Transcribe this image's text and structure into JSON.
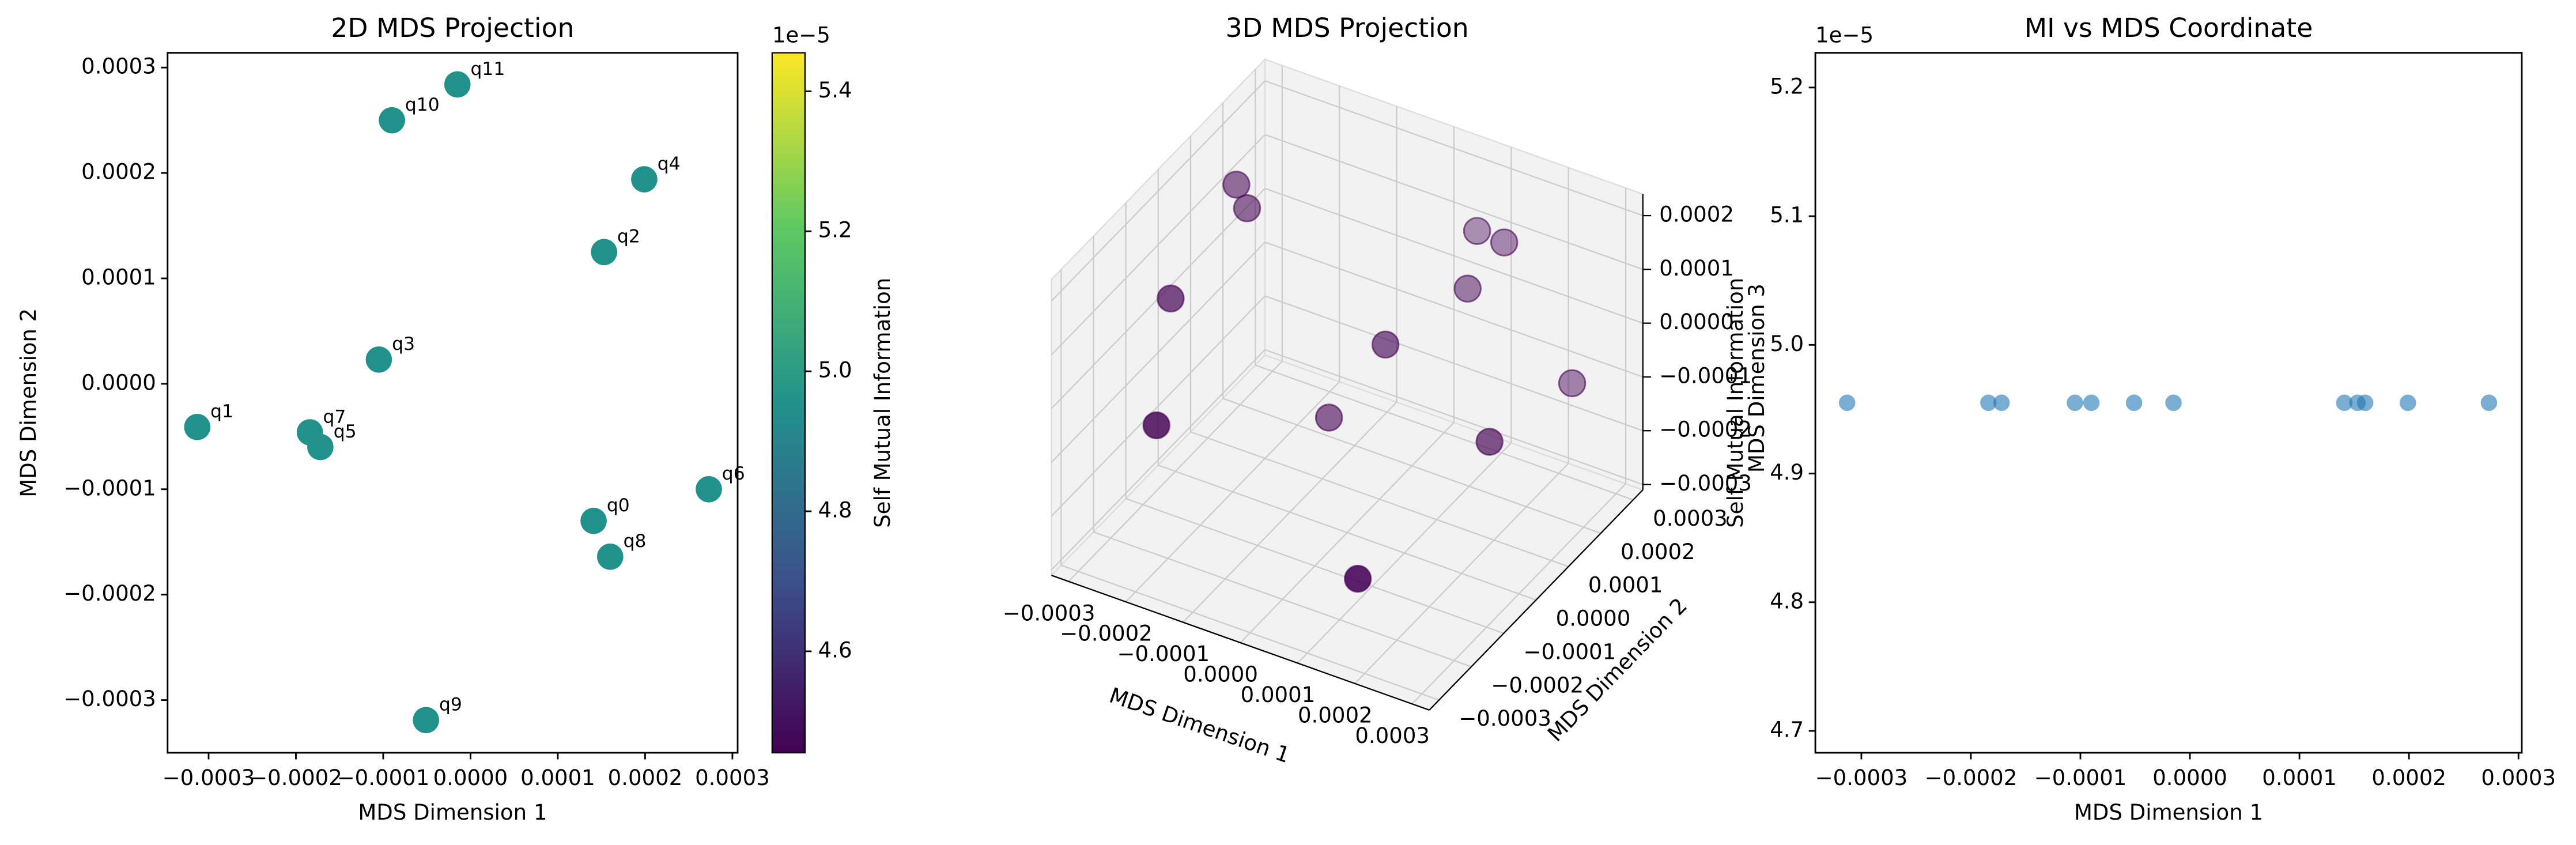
{
  "chart_data": [
    {
      "type": "scatter",
      "title": "2D MDS Projection",
      "xlabel": "MDS Dimension 1",
      "ylabel": "MDS Dimension 2",
      "labels": [
        "q0",
        "q1",
        "q2",
        "q3",
        "q4",
        "q5",
        "q6",
        "q7",
        "q8",
        "q9",
        "q10",
        "q11"
      ],
      "x": [
        0.000141,
        -0.000313,
        0.000153,
        -0.000105,
        0.000199,
        -0.000172,
        0.000273,
        -0.000184,
        0.00016,
        -5.1e-05,
        -9e-05,
        -1.5e-05
      ],
      "y": [
        -0.00013,
        -4.1e-05,
        0.000125,
        2.3e-05,
        0.000194,
        -6e-05,
        -0.0001,
        -4.6e-05,
        -0.000164,
        -0.000319,
        0.00025,
        0.000284
      ],
      "c": [
        4.955e-05,
        4.955e-05,
        4.955e-05,
        4.955e-05,
        4.955e-05,
        4.955e-05,
        4.955e-05,
        4.955e-05,
        4.955e-05,
        4.955e-05,
        4.955e-05,
        4.955e-05
      ],
      "cmap": "viridis",
      "xlim": [
        -0.000347,
        0.000306
      ],
      "ylim": [
        -0.00035,
        0.000314
      ],
      "xticks": [
        {
          "value": -0.0003,
          "label": "−0.0003"
        },
        {
          "value": -0.0002,
          "label": "−0.0002"
        },
        {
          "value": -0.0001,
          "label": "−0.0001"
        },
        {
          "value": 0,
          "label": "0.0000"
        },
        {
          "value": 0.0001,
          "label": "0.0001"
        },
        {
          "value": 0.0002,
          "label": "0.0002"
        },
        {
          "value": 0.0003,
          "label": "0.0003"
        }
      ],
      "yticks": [
        {
          "value": -0.0003,
          "label": "−0.0003"
        },
        {
          "value": -0.0002,
          "label": "−0.0002"
        },
        {
          "value": -0.0001,
          "label": "−0.0001"
        },
        {
          "value": 0,
          "label": "0.0000"
        },
        {
          "value": 0.0001,
          "label": "0.0001"
        },
        {
          "value": 0.0002,
          "label": "0.0002"
        },
        {
          "value": 0.0003,
          "label": "0.0003"
        }
      ],
      "colorbar": {
        "label": "Self Mutual Information",
        "offset_text": "1e−5",
        "lim": [
          4.455e-05,
          5.455e-05
        ],
        "ticks": [
          {
            "value": 4.6e-05,
            "label": "4.6"
          },
          {
            "value": 4.8e-05,
            "label": "4.8"
          },
          {
            "value": 5e-05,
            "label": "5.0"
          },
          {
            "value": 5.2e-05,
            "label": "5.2"
          },
          {
            "value": 5.4e-05,
            "label": "5.4"
          }
        ]
      }
    },
    {
      "type": "scatter3d",
      "title": "3D MDS Projection",
      "xlabel": "MDS Dimension 1",
      "ylabel": "MDS Dimension 2",
      "zlabel": "MDS Dimension 3",
      "color": "#440154",
      "x": [
        -0.00025,
        -0.00022,
        -0.00028,
        8e-05,
        0.00015,
        5e-05,
        0.00012,
        0.00028,
        0.00026,
        -6e-05,
        -0.00022,
        0.00016
      ],
      "y": [
        0.0001,
        8e-05,
        -5e-05,
        0.00026,
        0.00022,
        3e-05,
        0.00016,
        0.0002,
        -2e-05,
        5e-05,
        -0.0002,
        -0.00025
      ],
      "z": [
        0.00018,
        0.00016,
        5e-05,
        0.00012,
        0.00015,
        4e-05,
        9e-05,
        -5e-05,
        -3e-05,
        -0.00015,
        -7e-05,
        -0.00018
      ],
      "xlim": [
        -0.00033,
        0.00033
      ],
      "ylim": [
        -0.00033,
        0.00033
      ],
      "zlim": [
        -0.00031,
        0.00024
      ],
      "xticks": [
        {
          "value": -0.0003,
          "label": "−0.0003"
        },
        {
          "value": -0.0002,
          "label": "−0.0002"
        },
        {
          "value": -0.0001,
          "label": "−0.0001"
        },
        {
          "value": 0,
          "label": "0.0000"
        },
        {
          "value": 0.0001,
          "label": "0.0001"
        },
        {
          "value": 0.0002,
          "label": "0.0002"
        },
        {
          "value": 0.0003,
          "label": "0.0003"
        }
      ],
      "yticks": [
        {
          "value": -0.0003,
          "label": "−0.0003"
        },
        {
          "value": -0.0002,
          "label": "−0.0002"
        },
        {
          "value": -0.0001,
          "label": "−0.0001"
        },
        {
          "value": 0,
          "label": "0.0000"
        },
        {
          "value": 0.0001,
          "label": "0.0001"
        },
        {
          "value": 0.0002,
          "label": "0.0002"
        },
        {
          "value": 0.0003,
          "label": "0.0003"
        }
      ],
      "zticks": [
        {
          "value": -0.0003,
          "label": "−0.0003"
        },
        {
          "value": -0.0002,
          "label": "−0.0002"
        },
        {
          "value": -0.0001,
          "label": "−0.0001"
        },
        {
          "value": 0,
          "label": "0.0000"
        },
        {
          "value": 0.0001,
          "label": "0.0001"
        },
        {
          "value": 0.0002,
          "label": "0.0002"
        }
      ]
    },
    {
      "type": "scatter",
      "title": "MI vs MDS Coordinate",
      "xlabel": "MDS Dimension 1",
      "ylabel": "Self Mutual Information",
      "offset_text": "1e−5",
      "color": "#1f77b4",
      "x": [
        0.000141,
        -0.000313,
        0.000153,
        -0.000105,
        0.000199,
        -0.000172,
        0.000273,
        -0.000184,
        0.00016,
        -5.1e-05,
        -9e-05,
        -1.5e-05
      ],
      "y": [
        4.955e-05,
        4.955e-05,
        4.955e-05,
        4.955e-05,
        4.955e-05,
        4.955e-05,
        4.955e-05,
        4.955e-05,
        4.955e-05,
        4.955e-05,
        4.955e-05,
        4.955e-05
      ],
      "xlim": [
        -0.000342,
        0.000303
      ],
      "ylim": [
        4.683e-05,
        5.227e-05
      ],
      "xticks": [
        {
          "value": -0.0003,
          "label": "−0.0003"
        },
        {
          "value": -0.0002,
          "label": "−0.0002"
        },
        {
          "value": -0.0001,
          "label": "−0.0001"
        },
        {
          "value": 0,
          "label": "0.0000"
        },
        {
          "value": 0.0001,
          "label": "0.0001"
        },
        {
          "value": 0.0002,
          "label": "0.0002"
        },
        {
          "value": 0.0003,
          "label": "0.0003"
        }
      ],
      "yticks": [
        {
          "value": 4.7e-05,
          "label": "4.7"
        },
        {
          "value": 4.8e-05,
          "label": "4.8"
        },
        {
          "value": 4.9e-05,
          "label": "4.9"
        },
        {
          "value": 5e-05,
          "label": "5.0"
        },
        {
          "value": 5.1e-05,
          "label": "5.1"
        },
        {
          "value": 5.2e-05,
          "label": "5.2"
        }
      ]
    }
  ]
}
